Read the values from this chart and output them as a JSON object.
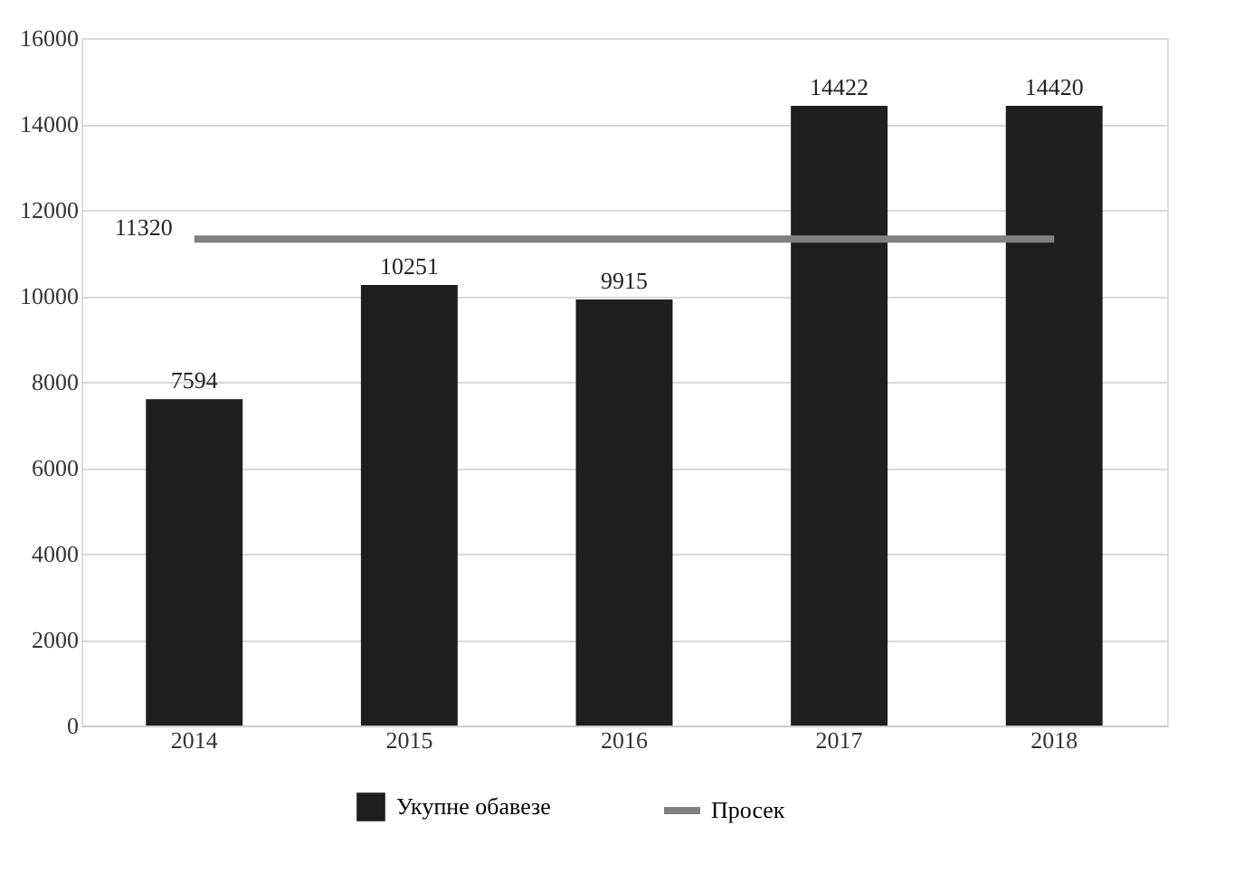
{
  "chart_data": {
    "type": "bar",
    "categories": [
      "2014",
      "2015",
      "2016",
      "2017",
      "2018"
    ],
    "series": [
      {
        "name": "Укупне обавезе",
        "color": "#1e1e1e",
        "values": [
          7594,
          10251,
          9915,
          14422,
          14420
        ],
        "value_labels": [
          "7594",
          "10251",
          "9915",
          "14422",
          "14420"
        ]
      },
      {
        "name": "Просек",
        "type": "line",
        "color": "#808080",
        "values": [
          11320,
          11320,
          11320,
          11320,
          11320
        ],
        "value_labels": [
          "11320",
          null,
          null,
          null,
          null
        ]
      }
    ],
    "ylim": [
      0,
      16000
    ],
    "yticks": [
      0,
      2000,
      4000,
      6000,
      8000,
      10000,
      12000,
      14000,
      16000
    ],
    "grid": "y",
    "legend": "bottom",
    "line_style": "solid"
  }
}
